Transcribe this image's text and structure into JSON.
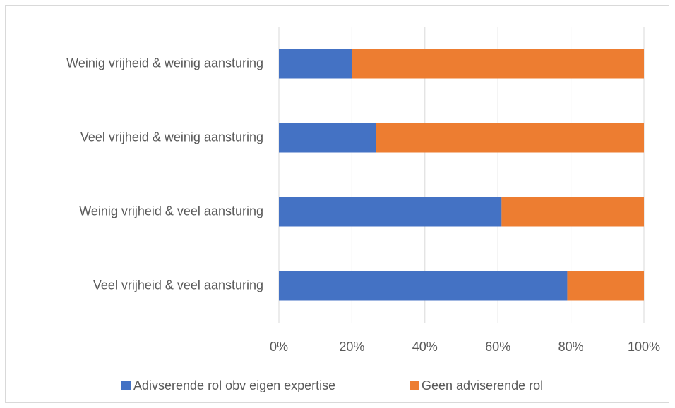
{
  "chart_data": {
    "type": "bar",
    "orientation": "horizontal",
    "stacked": "percent",
    "categories": [
      "Weinig vrijheid & weinig aansturing",
      "Veel vrijheid & weinig aansturing",
      "Weinig vrijheid & veel aansturing",
      "Veel vrijheid & veel aansturing"
    ],
    "series": [
      {
        "name": "Adivserende rol obv eigen expertise",
        "color": "#4472c4",
        "values": [
          20,
          26.5,
          61,
          79
        ]
      },
      {
        "name": "Geen adviserende rol",
        "color": "#ed7d31",
        "values": [
          80,
          73.5,
          39,
          21
        ]
      }
    ],
    "xlim": [
      0,
      100
    ],
    "xticks": [
      {
        "value": 0,
        "label": "0%"
      },
      {
        "value": 20,
        "label": "20%"
      },
      {
        "value": 40,
        "label": "40%"
      },
      {
        "value": 60,
        "label": "60%"
      },
      {
        "value": 80,
        "label": "80%"
      },
      {
        "value": 100,
        "label": "100%"
      }
    ],
    "grid": true,
    "legend": "bottom"
  }
}
